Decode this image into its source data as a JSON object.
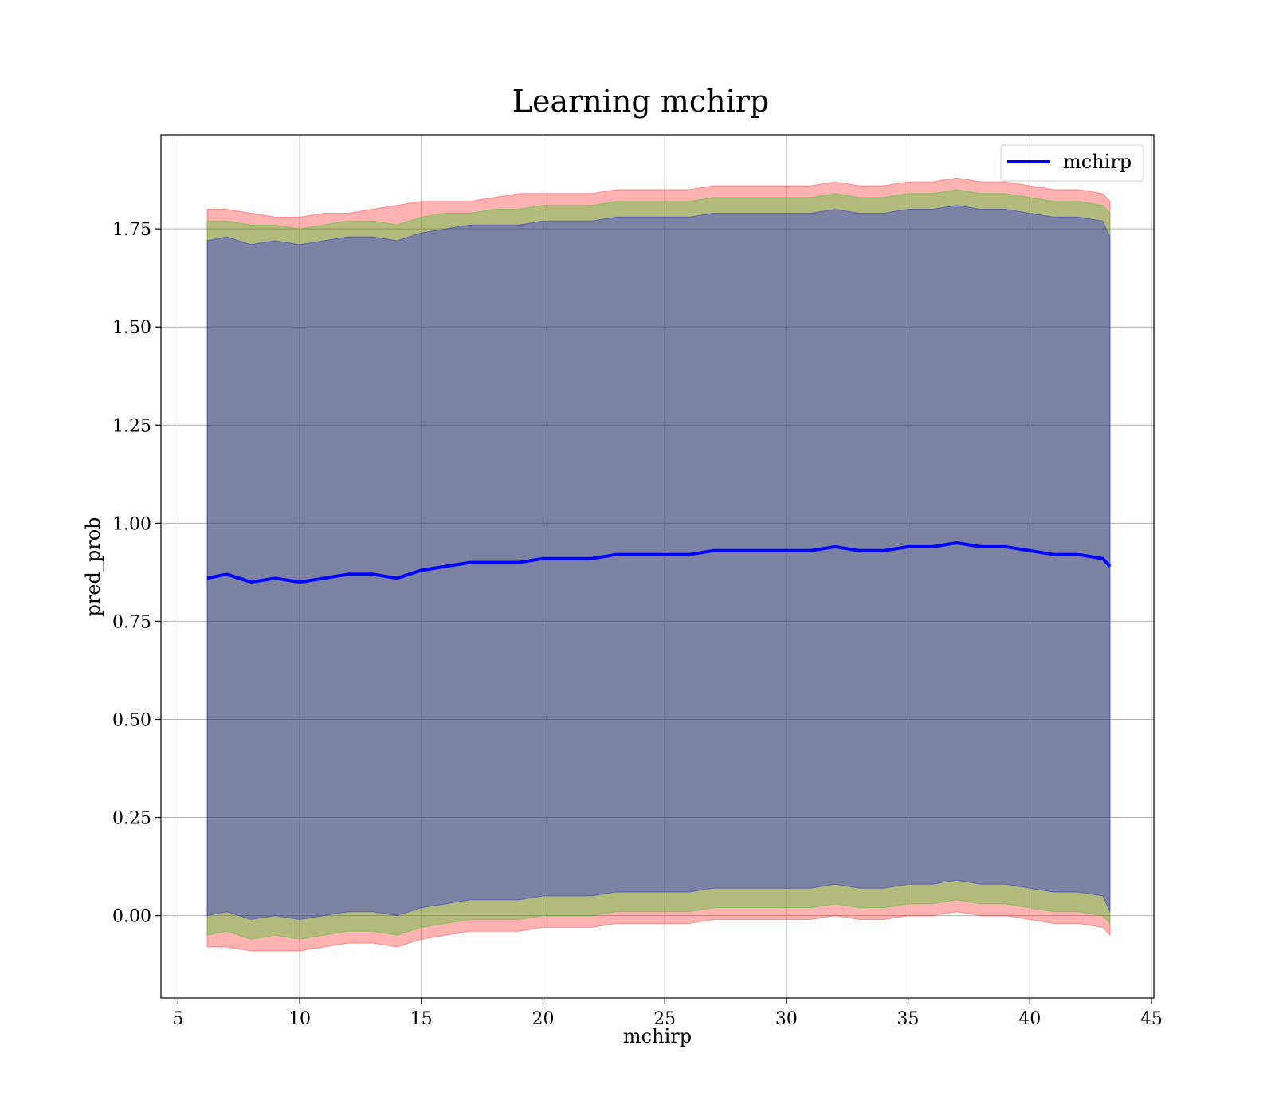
{
  "chart_data": {
    "type": "line",
    "title": "Learning mchirp",
    "xlabel": "mchirp",
    "ylabel": "pred_prob",
    "xlim": [
      4.3,
      45.1
    ],
    "ylim": [
      -0.21,
      1.99
    ],
    "xticks": [
      5,
      10,
      15,
      20,
      25,
      30,
      35,
      40,
      45
    ],
    "xtick_labels": [
      "5",
      "10",
      "15",
      "20",
      "25",
      "30",
      "35",
      "40",
      "45"
    ],
    "yticks": [
      0.0,
      0.25,
      0.5,
      0.75,
      1.0,
      1.25,
      1.5,
      1.75
    ],
    "ytick_labels": [
      "0.00",
      "0.25",
      "0.50",
      "0.75",
      "1.00",
      "1.25",
      "1.50",
      "1.75"
    ],
    "grid": true,
    "legend": {
      "position": "top-right",
      "entries": [
        "mchirp"
      ]
    },
    "series": [
      {
        "name": "mchirp",
        "color": "#0000ff",
        "x": [
          6.2,
          7.0,
          8.0,
          9.0,
          10.0,
          11.0,
          12.0,
          13.0,
          14.0,
          15.0,
          16.0,
          17.0,
          18.0,
          19.0,
          20.0,
          21.0,
          22.0,
          23.0,
          24.0,
          25.0,
          26.0,
          27.0,
          28.0,
          29.0,
          30.0,
          31.0,
          32.0,
          33.0,
          34.0,
          35.0,
          36.0,
          37.0,
          38.0,
          39.0,
          40.0,
          41.0,
          42.0,
          43.0,
          43.3
        ],
        "y": [
          0.86,
          0.87,
          0.85,
          0.86,
          0.85,
          0.86,
          0.87,
          0.87,
          0.86,
          0.88,
          0.89,
          0.9,
          0.9,
          0.9,
          0.91,
          0.91,
          0.91,
          0.92,
          0.92,
          0.92,
          0.92,
          0.93,
          0.93,
          0.93,
          0.93,
          0.93,
          0.94,
          0.93,
          0.93,
          0.94,
          0.94,
          0.95,
          0.94,
          0.94,
          0.93,
          0.92,
          0.92,
          0.91,
          0.89
        ]
      }
    ],
    "bands": [
      {
        "color": "#ff0000",
        "upper": [
          1.8,
          1.8,
          1.79,
          1.78,
          1.78,
          1.79,
          1.79,
          1.8,
          1.81,
          1.82,
          1.82,
          1.82,
          1.83,
          1.84,
          1.84,
          1.84,
          1.84,
          1.85,
          1.85,
          1.85,
          1.85,
          1.86,
          1.86,
          1.86,
          1.86,
          1.86,
          1.87,
          1.86,
          1.86,
          1.87,
          1.87,
          1.88,
          1.87,
          1.87,
          1.86,
          1.85,
          1.85,
          1.84,
          1.82
        ],
        "lower": [
          -0.08,
          -0.08,
          -0.09,
          -0.09,
          -0.09,
          -0.08,
          -0.07,
          -0.07,
          -0.08,
          -0.06,
          -0.05,
          -0.04,
          -0.04,
          -0.04,
          -0.03,
          -0.03,
          -0.03,
          -0.02,
          -0.02,
          -0.02,
          -0.02,
          -0.01,
          -0.01,
          -0.01,
          -0.01,
          -0.01,
          0.0,
          -0.01,
          -0.01,
          0.0,
          0.0,
          0.01,
          0.0,
          0.0,
          -0.01,
          -0.02,
          -0.02,
          -0.03,
          -0.05
        ]
      },
      {
        "color": "#00d000",
        "upper": [
          1.77,
          1.77,
          1.76,
          1.76,
          1.75,
          1.76,
          1.77,
          1.77,
          1.76,
          1.78,
          1.79,
          1.79,
          1.8,
          1.8,
          1.81,
          1.81,
          1.81,
          1.82,
          1.82,
          1.82,
          1.82,
          1.83,
          1.83,
          1.83,
          1.83,
          1.83,
          1.84,
          1.83,
          1.83,
          1.84,
          1.84,
          1.85,
          1.84,
          1.84,
          1.83,
          1.82,
          1.82,
          1.81,
          1.79
        ],
        "lower": [
          -0.05,
          -0.04,
          -0.06,
          -0.05,
          -0.06,
          -0.05,
          -0.04,
          -0.04,
          -0.05,
          -0.03,
          -0.02,
          -0.01,
          -0.01,
          -0.01,
          0.0,
          0.0,
          0.0,
          0.01,
          0.01,
          0.01,
          0.01,
          0.02,
          0.02,
          0.02,
          0.02,
          0.02,
          0.03,
          0.02,
          0.02,
          0.03,
          0.03,
          0.04,
          0.03,
          0.03,
          0.02,
          0.01,
          0.01,
          0.0,
          -0.02
        ]
      },
      {
        "color": "#0000ff",
        "upper": [
          1.72,
          1.73,
          1.71,
          1.72,
          1.71,
          1.72,
          1.73,
          1.73,
          1.72,
          1.74,
          1.75,
          1.76,
          1.76,
          1.76,
          1.77,
          1.77,
          1.77,
          1.78,
          1.78,
          1.78,
          1.78,
          1.79,
          1.79,
          1.79,
          1.79,
          1.79,
          1.8,
          1.79,
          1.79,
          1.8,
          1.8,
          1.81,
          1.8,
          1.8,
          1.79,
          1.78,
          1.78,
          1.77,
          1.73
        ],
        "lower": [
          0.0,
          0.01,
          -0.01,
          0.0,
          -0.01,
          0.0,
          0.01,
          0.01,
          0.0,
          0.02,
          0.03,
          0.04,
          0.04,
          0.04,
          0.05,
          0.05,
          0.05,
          0.06,
          0.06,
          0.06,
          0.06,
          0.07,
          0.07,
          0.07,
          0.07,
          0.07,
          0.08,
          0.07,
          0.07,
          0.08,
          0.08,
          0.09,
          0.08,
          0.08,
          0.07,
          0.06,
          0.06,
          0.05,
          0.01
        ]
      }
    ]
  }
}
